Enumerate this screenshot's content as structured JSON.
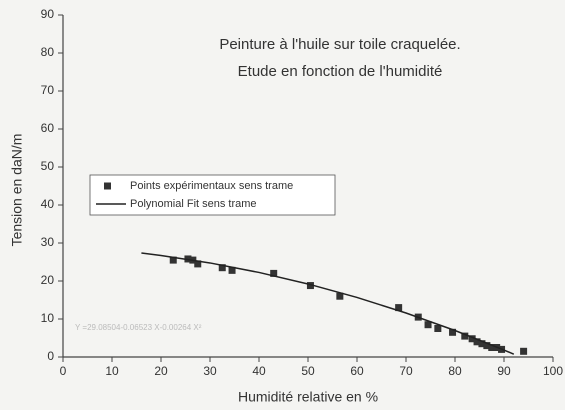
{
  "chart_data": {
    "type": "scatter",
    "title": "Peinture à l'huile sur toile craquelée.",
    "subtitle": "Etude en fonction de l'humidité",
    "xlabel": "Humidité relative en %",
    "ylabel": "Tension en daN/m",
    "annotation": "Y =29.08504-0.06523 X-0.00264 X²",
    "xlim": [
      0,
      100
    ],
    "xticks": [
      0,
      10,
      20,
      30,
      40,
      50,
      60,
      70,
      80,
      90,
      100
    ],
    "ylim": [
      0,
      90
    ],
    "yticks": [
      0,
      10,
      20,
      30,
      40,
      50,
      60,
      70,
      80,
      90
    ],
    "grid": false,
    "series": [
      {
        "name": "Points expérimentaux sens trame",
        "type": "scatter",
        "color": "#333333",
        "x": [
          22.5,
          25.5,
          26.5,
          27.5,
          32.5,
          34.5,
          43,
          50.5,
          56.5,
          68.5,
          72.5,
          74.5,
          76.5,
          79.5,
          82,
          83.5,
          84.5,
          85.5,
          86.5,
          87.5,
          88.5,
          89.5,
          94
        ],
        "values": [
          25.5,
          25.8,
          25.5,
          24.5,
          23.5,
          22.8,
          22,
          18.8,
          16,
          13,
          10.5,
          8.5,
          7.5,
          6.5,
          5.5,
          4.8,
          4,
          3.5,
          3,
          2.5,
          2.5,
          2,
          1.5
        ]
      },
      {
        "name": "Polynomial Fit sens trame",
        "type": "line",
        "color": "#222222",
        "x": [
          16,
          20,
          30,
          40,
          50,
          60,
          70,
          80,
          90,
          92
        ],
        "values": [
          27.37,
          26.72,
          24.75,
          22.25,
          19.22,
          15.67,
          11.58,
          6.97,
          1.83,
          0.74
        ]
      }
    ]
  }
}
